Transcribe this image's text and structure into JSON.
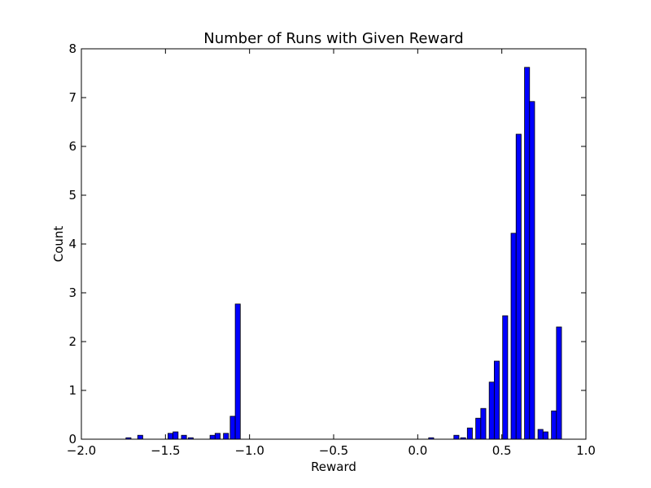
{
  "chart_data": {
    "type": "bar",
    "title": "Number of Runs with Given Reward",
    "xlabel": "Reward",
    "ylabel": "Count",
    "xlim": [
      -2.0,
      1.0
    ],
    "ylim": [
      0,
      8
    ],
    "xticks": [
      "−2.0",
      "−1.5",
      "−1.0",
      "−0.5",
      "0.0",
      "0.5",
      "1.0"
    ],
    "xtick_values": [
      -2.0,
      -1.5,
      -1.0,
      -0.5,
      0.0,
      0.5,
      1.0
    ],
    "yticks": [
      "0",
      "1",
      "2",
      "3",
      "4",
      "5",
      "6",
      "7",
      "8"
    ],
    "ytick_values": [
      0,
      1,
      2,
      3,
      4,
      5,
      6,
      7,
      8
    ],
    "bar_width": 0.03,
    "grid": false,
    "bar_color": "#0000ff",
    "bars": [
      {
        "x": -1.72,
        "y": 0.03
      },
      {
        "x": -1.65,
        "y": 0.08
      },
      {
        "x": -1.47,
        "y": 0.12
      },
      {
        "x": -1.44,
        "y": 0.15
      },
      {
        "x": -1.39,
        "y": 0.08
      },
      {
        "x": -1.35,
        "y": 0.03
      },
      {
        "x": -1.22,
        "y": 0.08
      },
      {
        "x": -1.19,
        "y": 0.12
      },
      {
        "x": -1.14,
        "y": 0.12
      },
      {
        "x": -1.1,
        "y": 0.47
      },
      {
        "x": -1.07,
        "y": 2.77
      },
      {
        "x": 0.08,
        "y": 0.03
      },
      {
        "x": 0.23,
        "y": 0.08
      },
      {
        "x": 0.27,
        "y": 0.03
      },
      {
        "x": 0.31,
        "y": 0.23
      },
      {
        "x": 0.36,
        "y": 0.43
      },
      {
        "x": 0.39,
        "y": 0.63
      },
      {
        "x": 0.44,
        "y": 1.17
      },
      {
        "x": 0.47,
        "y": 1.6
      },
      {
        "x": 0.52,
        "y": 2.53
      },
      {
        "x": 0.57,
        "y": 4.22
      },
      {
        "x": 0.6,
        "y": 6.25
      },
      {
        "x": 0.65,
        "y": 7.62
      },
      {
        "x": 0.68,
        "y": 6.92
      },
      {
        "x": 0.73,
        "y": 0.2
      },
      {
        "x": 0.76,
        "y": 0.15
      },
      {
        "x": 0.81,
        "y": 0.58
      },
      {
        "x": 0.84,
        "y": 2.3
      }
    ]
  }
}
